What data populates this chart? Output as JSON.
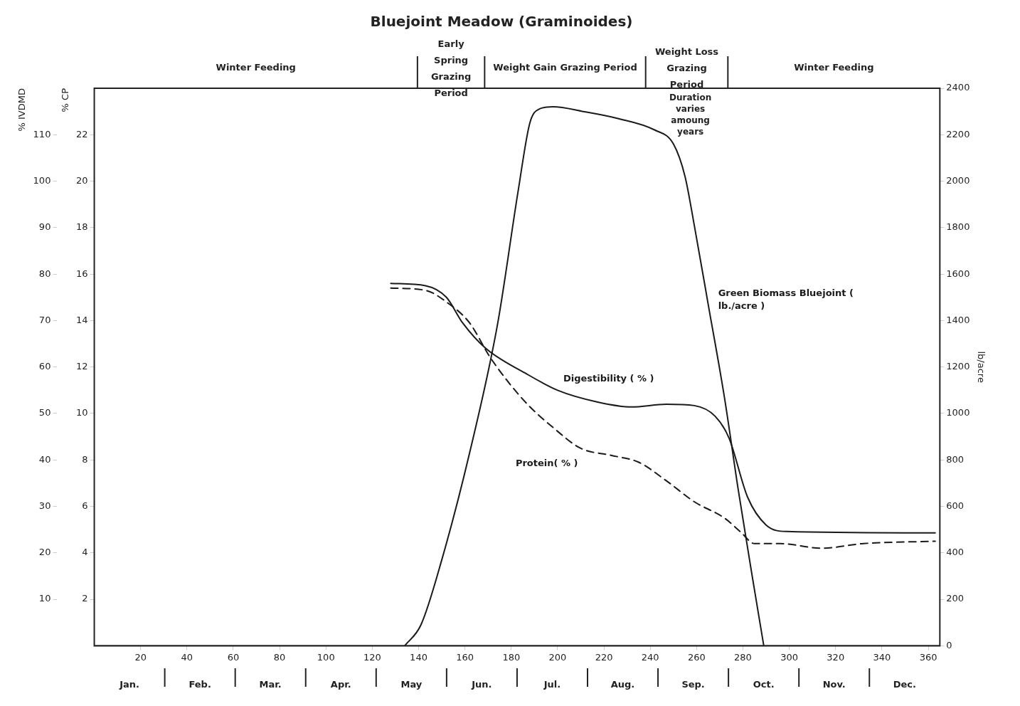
{
  "chart_data": {
    "type": "line",
    "title": "Bluejoint Meadow (Graminoides)",
    "ylabel": "% IVDMD",
    "y2label": "% CP",
    "y3label": "lb/acre",
    "xlim": [
      0,
      365
    ],
    "xticks": [
      20,
      40,
      60,
      80,
      100,
      120,
      140,
      160,
      180,
      200,
      220,
      240,
      260,
      280,
      300,
      320,
      340,
      360
    ],
    "ylim": [
      0,
      120
    ],
    "yticks": [
      10,
      20,
      30,
      40,
      50,
      60,
      70,
      80,
      90,
      100,
      110
    ],
    "y2lim": [
      0,
      24
    ],
    "y2ticks": [
      2,
      4,
      6,
      8,
      10,
      12,
      14,
      16,
      18,
      20,
      22
    ],
    "y3lim": [
      0,
      2400
    ],
    "y3ticks": [
      0,
      200,
      400,
      600,
      800,
      1000,
      1200,
      1400,
      1600,
      1800,
      2000,
      2200,
      2400
    ],
    "grid": false,
    "legend": false,
    "marker": "none",
    "series": [
      {
        "name": "Green Biomass Bluejoint ( lb./acre )",
        "color": "#1a1a1a",
        "axis": "y3",
        "line_style": "solid",
        "x": [
          134,
          141,
          150,
          162,
          174,
          183,
          188,
          192,
          198,
          211,
          226,
          242,
          250,
          255,
          259,
          265,
          272,
          278,
          284,
          289
        ],
        "values": [
          0,
          90,
          370,
          830,
          1380,
          1960,
          2250,
          2310,
          2320,
          2300,
          2270,
          2220,
          2160,
          2020,
          1810,
          1470,
          1070,
          670,
          300,
          0
        ]
      },
      {
        "name": "Digestibility ( % )",
        "color": "#1a1a1a",
        "axis": "y",
        "line_style": "solid",
        "x": [
          128,
          143,
          152,
          159,
          169,
          186,
          200,
          217,
          232,
          247,
          259,
          268,
          274,
          282,
          290,
          299,
          363
        ],
        "values": [
          78,
          77.5,
          75,
          69.5,
          64,
          58.7,
          55,
          52.5,
          51.4,
          52,
          51.7,
          49.4,
          44.7,
          32,
          26,
          24.6,
          24.3
        ]
      },
      {
        "name": "Protein( % )",
        "color": "#1a1a1a",
        "axis": "y2",
        "line_style": "dashed",
        "x": [
          128,
          143,
          152,
          162,
          171,
          186,
          198,
          210,
          223,
          235,
          247,
          259,
          272,
          279,
          285,
          296,
          314,
          332,
          363
        ],
        "values": [
          15.4,
          15.3,
          14.8,
          13.9,
          12.4,
          10.5,
          9.4,
          8.5,
          8.2,
          7.9,
          7.1,
          6.2,
          5.5,
          4.9,
          4.4,
          4.4,
          4.2,
          4.4,
          4.5
        ]
      }
    ],
    "bands": [
      {
        "axis": "x",
        "from": 0,
        "to": 139.5,
        "label": "Winter Feeding",
        "color": "#ffffff"
      },
      {
        "axis": "x",
        "from": 139.5,
        "to": 168.5,
        "label": "Early Spring Grazing Period",
        "color": "#ffffff"
      },
      {
        "axis": "x",
        "from": 168.5,
        "to": 238,
        "label": "Weight Gain Grazing Period",
        "color": "#ffffff"
      },
      {
        "axis": "x",
        "from": 238,
        "to": 273.5,
        "label": "Weight Loss Grazing Period",
        "color": "#ffffff"
      },
      {
        "axis": "x",
        "from": 273.5,
        "to": 365,
        "label": "Winter Feeding",
        "color": "#ffffff"
      }
    ],
    "annotations": [
      "Duration varies amoung years",
      "Jan.",
      "Feb.",
      "Mar.",
      "Apr.",
      "May",
      "Jun.",
      "Jul.",
      "Aug.",
      "Sep.",
      "Oct.",
      "Nov.",
      "Dec."
    ]
  }
}
